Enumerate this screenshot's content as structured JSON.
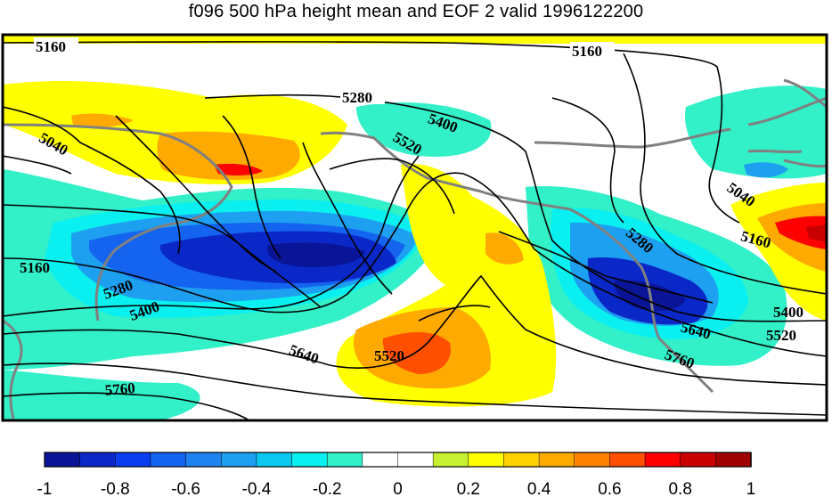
{
  "title": "f096 500 hPa height mean and EOF 2 valid 1996122200",
  "colorbar": {
    "colors": [
      "#0a1496",
      "#0a28c8",
      "#0a3cf0",
      "#1464f0",
      "#1e82f0",
      "#1ea0f0",
      "#0ac8f0",
      "#0af0f0",
      "#32f0c8",
      "#ffffff",
      "#ffffff",
      "#c8f032",
      "#ffff00",
      "#ffd200",
      "#ffaa00",
      "#ff8200",
      "#ff5000",
      "#ff0000",
      "#c80000",
      "#a00000"
    ],
    "ticks": [
      "-1",
      "-0.8",
      "-0.6",
      "-0.4",
      "-0.2",
      "0",
      "0.2",
      "0.4",
      "0.6",
      "0.8",
      "1"
    ]
  },
  "contour_labels": [
    {
      "text": "5160"
    },
    {
      "text": "5160"
    },
    {
      "text": "5280"
    },
    {
      "text": "5040"
    },
    {
      "text": "5400"
    },
    {
      "text": "5520"
    },
    {
      "text": "5160"
    },
    {
      "text": "5280"
    },
    {
      "text": "5400"
    },
    {
      "text": "5520"
    },
    {
      "text": "5640"
    },
    {
      "text": "5760"
    },
    {
      "text": "5040"
    },
    {
      "text": "5160"
    },
    {
      "text": "5280"
    },
    {
      "text": "5400"
    },
    {
      "text": "5520"
    },
    {
      "text": "5640"
    },
    {
      "text": "5760"
    }
  ]
}
